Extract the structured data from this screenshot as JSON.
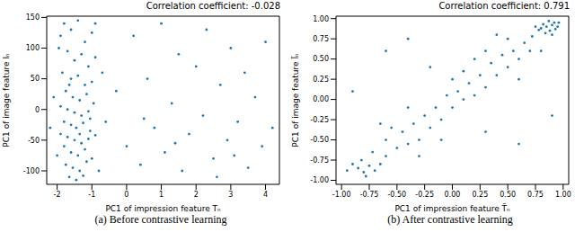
{
  "chart_data": [
    {
      "type": "scatter",
      "title": "Correlation coefficient: -0.028",
      "caption": "(a) Before contrastive learning",
      "xlabel": "PC1 of impression feature Tₙ",
      "ylabel": "PC1 of image feature Iₙ",
      "color": "#1f77b4",
      "marker": "circle",
      "xlim": [
        -2.3,
        4.4
      ],
      "xticks": [
        -2,
        -1,
        0,
        1,
        2,
        3,
        4
      ],
      "ylim": [
        -122,
        152
      ],
      "yticks": [
        -100,
        -50,
        0,
        50,
        100,
        150
      ],
      "grid": false,
      "x": [
        -1.9,
        -1.8,
        -1.6,
        -1.4,
        -1.2,
        -1.0,
        -0.9,
        -1.7,
        -1.5,
        -1.3,
        -1.1,
        -0.9,
        -1.85,
        -1.6,
        -1.4,
        -1.2,
        -1.0,
        -1.75,
        -1.55,
        -1.35,
        -1.15,
        -0.95,
        -1.9,
        -1.7,
        -1.5,
        -1.3,
        -1.1,
        -1.8,
        -1.6,
        -1.45,
        -1.25,
        -1.05,
        -1.9,
        -1.7,
        -1.5,
        -1.3,
        -1.1,
        -0.9,
        -1.8,
        -1.6,
        -1.4,
        -1.2,
        -1.0,
        -1.75,
        -1.55,
        -1.35,
        -1.15,
        -1.65,
        -1.45,
        -1.25,
        -2.0,
        -2.1,
        -2.2,
        -0.7,
        -0.6,
        -0.8,
        -1.95,
        -1.05,
        -1.65,
        -1.35,
        -0.3,
        0.0,
        0.2,
        0.4,
        0.6,
        0.8,
        1.0,
        1.1,
        1.3,
        1.5,
        1.6,
        1.8,
        2.0,
        2.2,
        2.3,
        2.5,
        2.7,
        2.9,
        3.0,
        3.2,
        3.4,
        3.5,
        3.7,
        3.9,
        4.0,
        4.2,
        1.4,
        0.5,
        2.6,
        3.1
      ],
      "values": [
        120,
        140,
        130,
        145,
        110,
        125,
        140,
        95,
        80,
        90,
        70,
        85,
        60,
        50,
        55,
        40,
        45,
        30,
        20,
        15,
        25,
        10,
        5,
        0,
        -5,
        -10,
        -3,
        -20,
        -25,
        -30,
        -22,
        -35,
        -40,
        -45,
        -50,
        -55,
        -48,
        -42,
        -60,
        -70,
        -75,
        -65,
        -80,
        -90,
        -95,
        -100,
        -85,
        -110,
        -115,
        -108,
        -75,
        20,
        -30,
        60,
        -20,
        -100,
        100,
        -15,
        40,
        -40,
        30,
        -60,
        120,
        -90,
        50,
        -30,
        140,
        -70,
        10,
        90,
        -100,
        -40,
        70,
        -10,
        130,
        -80,
        40,
        -50,
        100,
        -20,
        60,
        -95,
        20,
        -60,
        110,
        -30,
        -55,
        -15,
        -110,
        -75
      ]
    },
    {
      "type": "scatter",
      "title": "Correlation coefficient: 0.791",
      "caption": "(b) After contrastive learning",
      "xlabel": "PC1 of impression feature T̄ₙ",
      "ylabel": "PC1 of image feature Īₙ",
      "color": "#1f77b4",
      "marker": "circle",
      "xlim": [
        -1.05,
        1.05
      ],
      "xticks": [
        {
          "value": -1,
          "label": "-1.00"
        },
        {
          "value": -0.75,
          "label": "-0.75"
        },
        {
          "value": -0.5,
          "label": "-0.50"
        },
        {
          "value": -0.25,
          "label": "-0.25"
        },
        {
          "value": 0,
          "label": "0.00"
        },
        {
          "value": 0.25,
          "label": "0.25"
        },
        {
          "value": 0.5,
          "label": "0.50"
        },
        {
          "value": 0.75,
          "label": "0.75"
        },
        {
          "value": 1,
          "label": "1.00"
        }
      ],
      "ylim": [
        -1.05,
        1.03
      ],
      "yticks": [
        {
          "value": -1,
          "label": "-1.00"
        },
        {
          "value": -0.75,
          "label": "-0.75"
        },
        {
          "value": -0.5,
          "label": "-0.50"
        },
        {
          "value": -0.25,
          "label": "-0.25"
        },
        {
          "value": 0,
          "label": "0.00"
        },
        {
          "value": 0.25,
          "label": "0.25"
        },
        {
          "value": 0.5,
          "label": "0.50"
        },
        {
          "value": 0.75,
          "label": "0.75"
        },
        {
          "value": 1,
          "label": "1.00"
        }
      ],
      "grid": false,
      "x": [
        0.8,
        0.85,
        0.9,
        0.95,
        0.88,
        0.92,
        0.82,
        0.87,
        0.93,
        0.78,
        0.96,
        0.9,
        0.84,
        0.75,
        -0.85,
        -0.8,
        -0.75,
        -0.9,
        -0.7,
        -0.82,
        -0.65,
        -0.78,
        -0.95,
        -0.6,
        -0.72,
        -0.5,
        -0.45,
        -0.4,
        -0.35,
        -0.3,
        -0.25,
        -0.2,
        -0.15,
        -0.1,
        -0.05,
        0.0,
        0.05,
        0.1,
        0.15,
        0.2,
        0.25,
        0.3,
        0.35,
        0.4,
        0.45,
        0.5,
        0.55,
        0.6,
        0.65,
        0.7,
        0.72,
        -0.55,
        -0.6,
        0.3,
        0.5,
        -0.3,
        0.1,
        -0.1,
        0.6,
        0.2,
        -0.4,
        0.4,
        -0.65,
        0.0,
        0.8,
        -0.6,
        -0.4,
        -0.9,
        0.9,
        0.6,
        -0.2,
        0.3
      ],
      "values": [
        0.88,
        0.9,
        0.92,
        0.9,
        0.85,
        0.95,
        0.93,
        0.97,
        0.87,
        0.86,
        0.95,
        0.8,
        0.82,
        0.9,
        -0.85,
        -0.9,
        -0.82,
        -0.8,
        -0.88,
        -0.75,
        -0.8,
        -0.95,
        -0.88,
        -0.7,
        -0.65,
        -0.6,
        -0.4,
        -0.55,
        -0.3,
        -0.5,
        -0.2,
        -0.35,
        -0.1,
        -0.25,
        0.05,
        -0.1,
        0.1,
        0.0,
        0.2,
        0.05,
        0.3,
        0.15,
        0.45,
        0.3,
        0.55,
        0.4,
        0.6,
        0.5,
        0.7,
        0.6,
        0.78,
        -0.35,
        -0.5,
        0.6,
        0.75,
        -0.7,
        0.35,
        -0.5,
        0.25,
        0.5,
        -0.1,
        0.8,
        -0.3,
        0.25,
        0.6,
        0.6,
        0.75,
        0.1,
        -0.2,
        -0.55,
        0.4,
        -0.4
      ]
    }
  ]
}
